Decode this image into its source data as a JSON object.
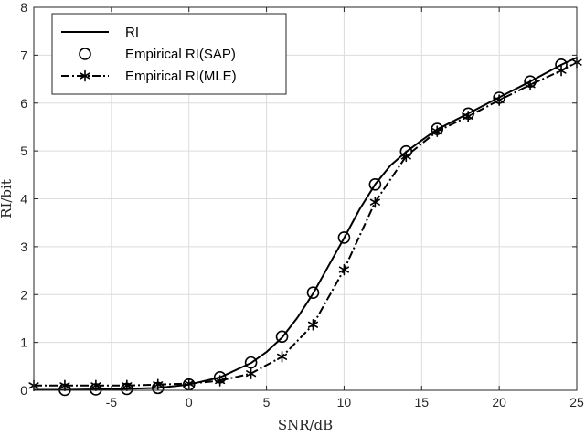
{
  "chart_data": {
    "type": "line",
    "xlabel": "SNR/dB",
    "ylabel": "RI/bit",
    "xlim": [
      -10,
      25
    ],
    "ylim": [
      0,
      8
    ],
    "xticks": [
      -5,
      0,
      5,
      10,
      15,
      20,
      25
    ],
    "yticks": [
      0,
      1,
      2,
      3,
      4,
      5,
      6,
      7,
      8
    ],
    "grid": true,
    "legend_position": "top-left",
    "series": [
      {
        "name": "RI",
        "style": "solid",
        "marker": "none",
        "color": "#000000",
        "x": [
          -10,
          -8,
          -6,
          -4,
          -2,
          0,
          2,
          4,
          5,
          6,
          7,
          8,
          9,
          10,
          11,
          12,
          13,
          14,
          15,
          16,
          18,
          20,
          22,
          24,
          25
        ],
        "y": [
          0.01,
          0.01,
          0.02,
          0.03,
          0.05,
          0.12,
          0.27,
          0.57,
          0.8,
          1.1,
          1.52,
          2.02,
          2.6,
          3.18,
          3.78,
          4.3,
          4.7,
          4.98,
          5.22,
          5.45,
          5.78,
          6.12,
          6.45,
          6.8,
          6.95
        ]
      },
      {
        "name": "Empirical RI(SAP)",
        "style": "none",
        "marker": "circle",
        "color": "#000000",
        "x": [
          -8,
          -6,
          -4,
          -2,
          0,
          2,
          4,
          6,
          8,
          10,
          12,
          14,
          16,
          18,
          20,
          22,
          24
        ],
        "y": [
          0.01,
          0.02,
          0.03,
          0.05,
          0.12,
          0.27,
          0.58,
          1.12,
          2.04,
          3.19,
          4.3,
          4.99,
          5.46,
          5.78,
          6.11,
          6.45,
          6.8
        ]
      },
      {
        "name": "Empirical RI(MLE)",
        "style": "dashdot",
        "marker": "asterisk",
        "color": "#000000",
        "x": [
          -10,
          -8,
          -6,
          -4,
          -2,
          0,
          2,
          4,
          6,
          8,
          10,
          12,
          14,
          16,
          18,
          20,
          22,
          24,
          25
        ],
        "y": [
          0.1,
          0.1,
          0.1,
          0.1,
          0.12,
          0.14,
          0.2,
          0.35,
          0.7,
          1.37,
          2.52,
          3.93,
          4.89,
          5.41,
          5.72,
          6.06,
          6.38,
          6.68,
          6.85
        ]
      }
    ]
  }
}
